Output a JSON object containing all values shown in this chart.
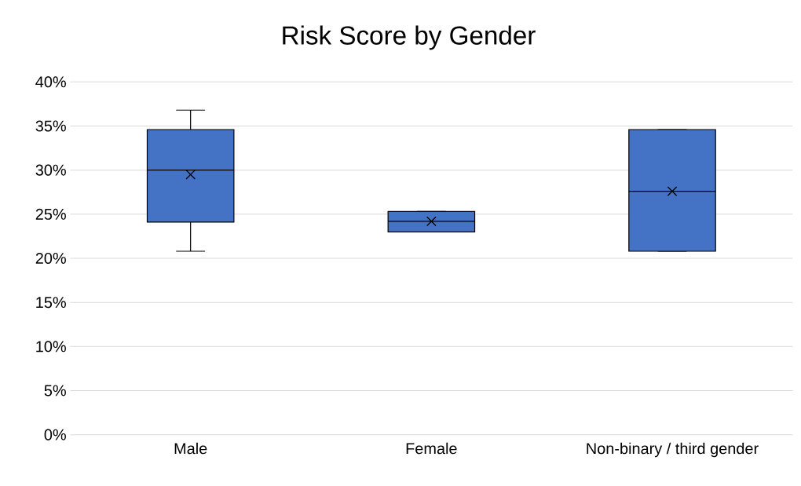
{
  "chart_data": {
    "type": "box",
    "title": "Risk Score by Gender",
    "categories": [
      "Male",
      "Female",
      "Non-binary / third gender"
    ],
    "boxes": [
      {
        "low": 20.8,
        "q1": 24.1,
        "median": 30.0,
        "q3": 34.6,
        "high": 36.8,
        "mean": 29.5
      },
      {
        "low": 23.0,
        "q1": 23.0,
        "median": 24.2,
        "q3": 25.3,
        "high": 25.3,
        "mean": 24.2
      },
      {
        "low": 20.8,
        "q1": 20.8,
        "median": 27.6,
        "q3": 34.6,
        "high": 34.6,
        "mean": 27.6
      }
    ],
    "color": "#4472c4",
    "marker": "cross",
    "grid": "y",
    "ylim": [
      0,
      40
    ],
    "yticks": [
      {
        "value": 0,
        "label": "0%"
      },
      {
        "value": 5,
        "label": "5%"
      },
      {
        "value": 10,
        "label": "10%"
      },
      {
        "value": 15,
        "label": "15%"
      },
      {
        "value": 20,
        "label": "20%"
      },
      {
        "value": 25,
        "label": "25%"
      },
      {
        "value": 30,
        "label": "30%"
      },
      {
        "value": 35,
        "label": "35%"
      },
      {
        "value": 40,
        "label": "40%"
      }
    ]
  }
}
